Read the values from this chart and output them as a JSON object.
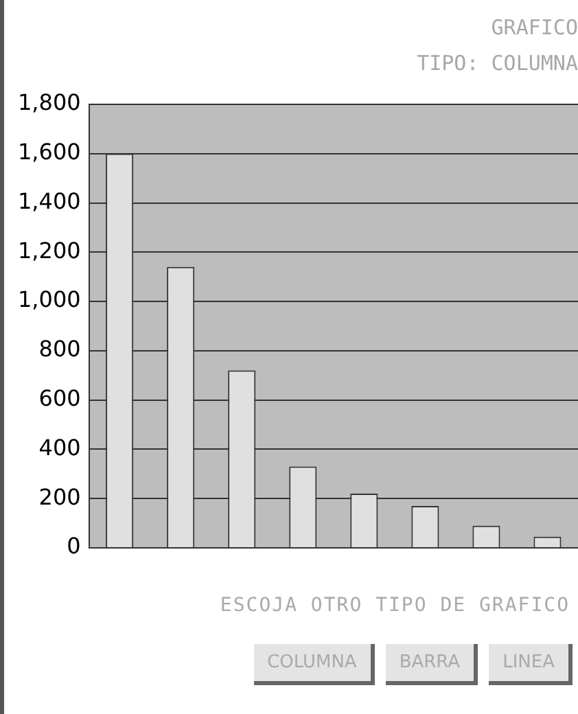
{
  "chart_data": {
    "type": "bar",
    "title": "GRAFICO",
    "subtitle": "TIPO: COLUMNA",
    "categories": [
      null,
      null,
      null,
      null,
      null,
      null,
      null,
      null
    ],
    "values": [
      1600,
      1140,
      720,
      330,
      220,
      170,
      90,
      45
    ],
    "color": "#e0e0e0",
    "ylim": [
      0,
      1800
    ],
    "yticks": [
      0,
      200,
      400,
      600,
      800,
      {
        "value": 1000,
        "label": "1,000"
      },
      {
        "value": 1200,
        "label": "1,200"
      },
      {
        "value": 1400,
        "label": "1,400"
      },
      {
        "value": 1600,
        "label": "1,600"
      },
      {
        "value": 1800,
        "label": "1,800"
      }
    ],
    "grid": "y",
    "annotations": [
      "ESCOJA OTRO TIPO DE GRAFICO",
      "COLUMNA",
      "BARRA",
      "LINEA"
    ]
  }
}
